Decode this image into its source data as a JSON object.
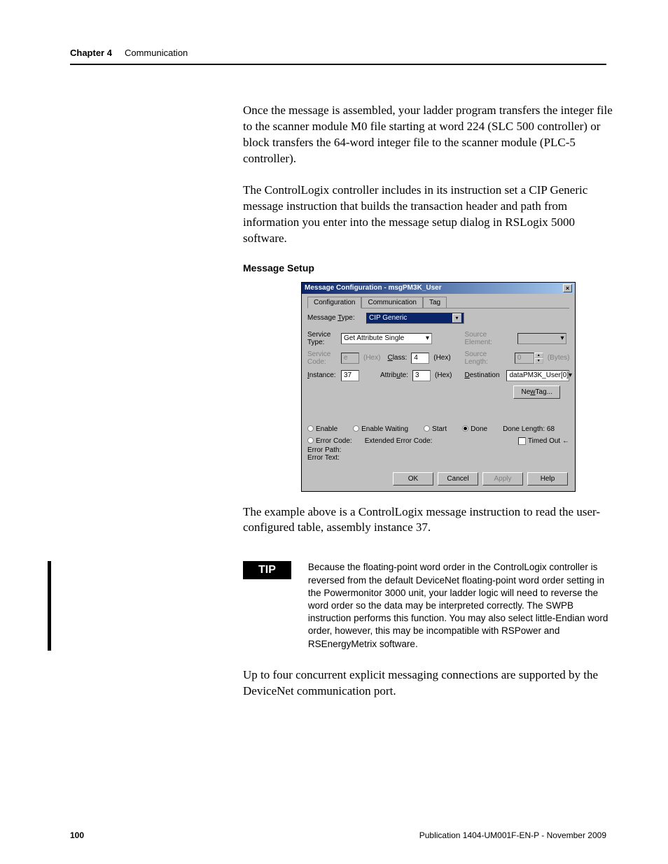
{
  "header": {
    "chapter": "Chapter 4",
    "title": "Communication"
  },
  "paragraphs": {
    "p1": "Once the message is assembled, your ladder program transfers the integer file to the scanner module M0 file starting at word 224 (SLC 500 controller) or block transfers the 64-word integer file to the scanner module (PLC-5 controller).",
    "p2": "The ControlLogix controller includes in its instruction set a CIP Generic message instruction that builds the transaction header and path from information you enter into the message setup dialog in RSLogix 5000 software.",
    "p3": "The example above is a ControlLogix message instruction to read the user-configured table, assembly instance 37.",
    "p4": "Up to four concurrent explicit messaging connections are supported by the DeviceNet communication port."
  },
  "subhead": "Message Setup",
  "dialog": {
    "title": "Message Configuration - msgPM3K_User",
    "tabs": {
      "t1": "Configuration",
      "t2": "Communication",
      "t3": "Tag"
    },
    "labels": {
      "message_type": "Message Type:",
      "service_type": "Service Type:",
      "service_code": "Service Code:",
      "instance": "Instance:",
      "class": "Class:",
      "attribute": "Attribute:",
      "hex1": "(Hex)",
      "hex2": "(Hex)",
      "hex3": "(Hex)",
      "source_element": "Source Element:",
      "source_length": "Source Length:",
      "destination": "Destination",
      "bytes": "(Bytes)",
      "new_tag": "New Tag..."
    },
    "values": {
      "message_type": "CIP Generic",
      "service_type": "Get Attribute Single",
      "service_code": "e",
      "instance": "37",
      "class": "4",
      "attribute": "3",
      "source_length": "0",
      "destination": "dataPM3K_User[0]"
    },
    "status": {
      "enable": "Enable",
      "enable_waiting": "Enable Waiting",
      "start": "Start",
      "done": "Done",
      "done_length": "Done Length: 68",
      "error_code": "Error Code:",
      "ext_error": "Extended Error Code:",
      "timed_out": "Timed Out ←",
      "error_path": "Error Path:",
      "error_text": "Error Text:"
    },
    "buttons": {
      "ok": "OK",
      "cancel": "Cancel",
      "apply": "Apply",
      "help": "Help"
    }
  },
  "tip": {
    "label": "TIP",
    "text": "Because the floating-point word order in the ControlLogix controller is reversed from the default DeviceNet floating-point word order setting in the Powermonitor 3000 unit, your ladder logic will need to reverse the word order so the data may be interpreted correctly. The SWPB instruction performs this function. You may also select little-Endian word order, however, this may be incompatible with RSPower and RSEnergyMetrix software."
  },
  "footer": {
    "page": "100",
    "pub": "Publication 1404-UM001F-EN-P - November 2009"
  },
  "colors": {
    "titlebar_start": "#0a246a",
    "titlebar_end": "#a6caf0",
    "win_bg": "#c0c0c0",
    "text": "#000000",
    "disabled": "#808080"
  }
}
